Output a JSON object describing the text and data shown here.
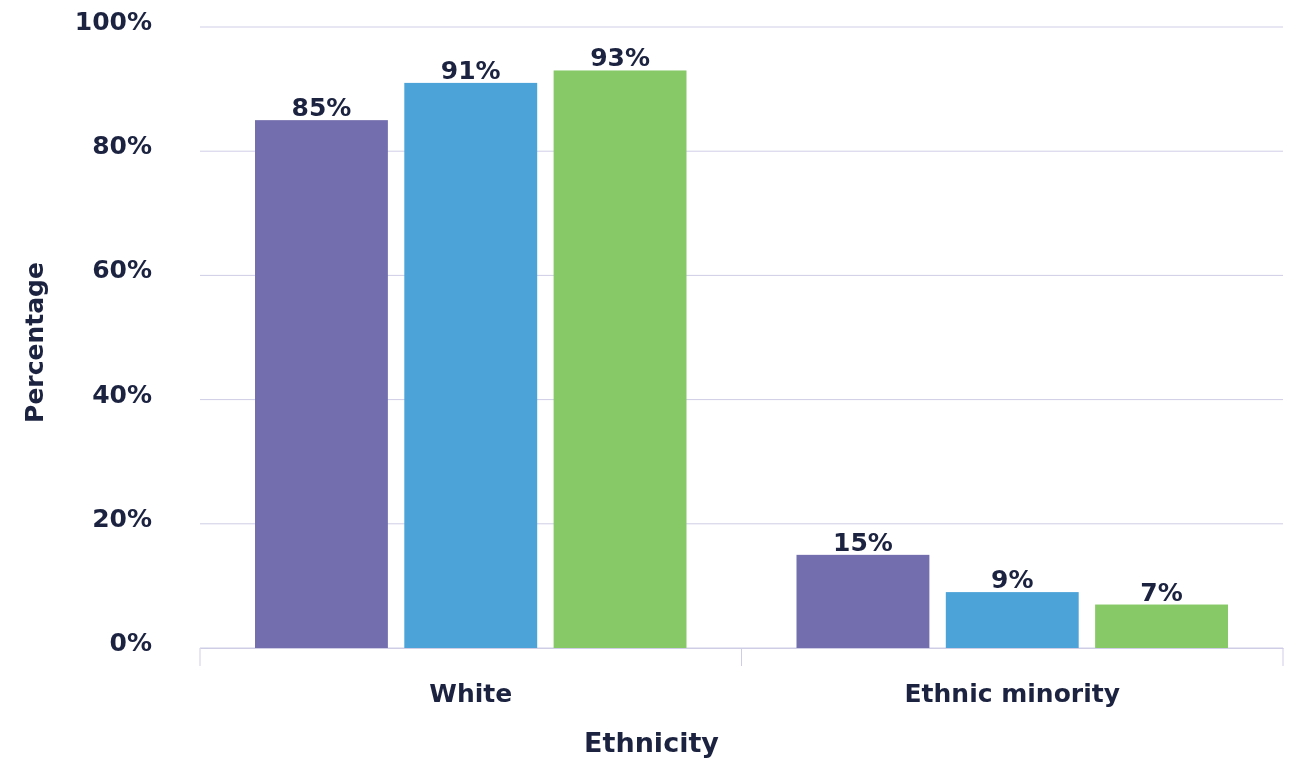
{
  "chart_data": {
    "type": "bar",
    "xlabel": "Ethnicity",
    "ylabel": "Percentage",
    "categories": [
      "White",
      "Ethnic minority"
    ],
    "series": [
      {
        "color": "#736eae",
        "values": [
          85,
          15
        ],
        "value_labels": [
          "85%",
          "15%"
        ]
      },
      {
        "color": "#4ca3d8",
        "values": [
          91,
          9
        ],
        "value_labels": [
          "91%",
          "9%"
        ]
      },
      {
        "color": "#86c966",
        "values": [
          93,
          7
        ],
        "value_labels": [
          "93%",
          "7%"
        ]
      }
    ],
    "ylim": [
      0,
      100
    ],
    "yticks": [
      {
        "value": 0,
        "label": "0%"
      },
      {
        "value": 20,
        "label": "20%"
      },
      {
        "value": 40,
        "label": "40%"
      },
      {
        "value": 60,
        "label": "60%"
      },
      {
        "value": 80,
        "label": "80%"
      },
      {
        "value": 100,
        "label": "100%"
      }
    ],
    "grid": "y"
  }
}
